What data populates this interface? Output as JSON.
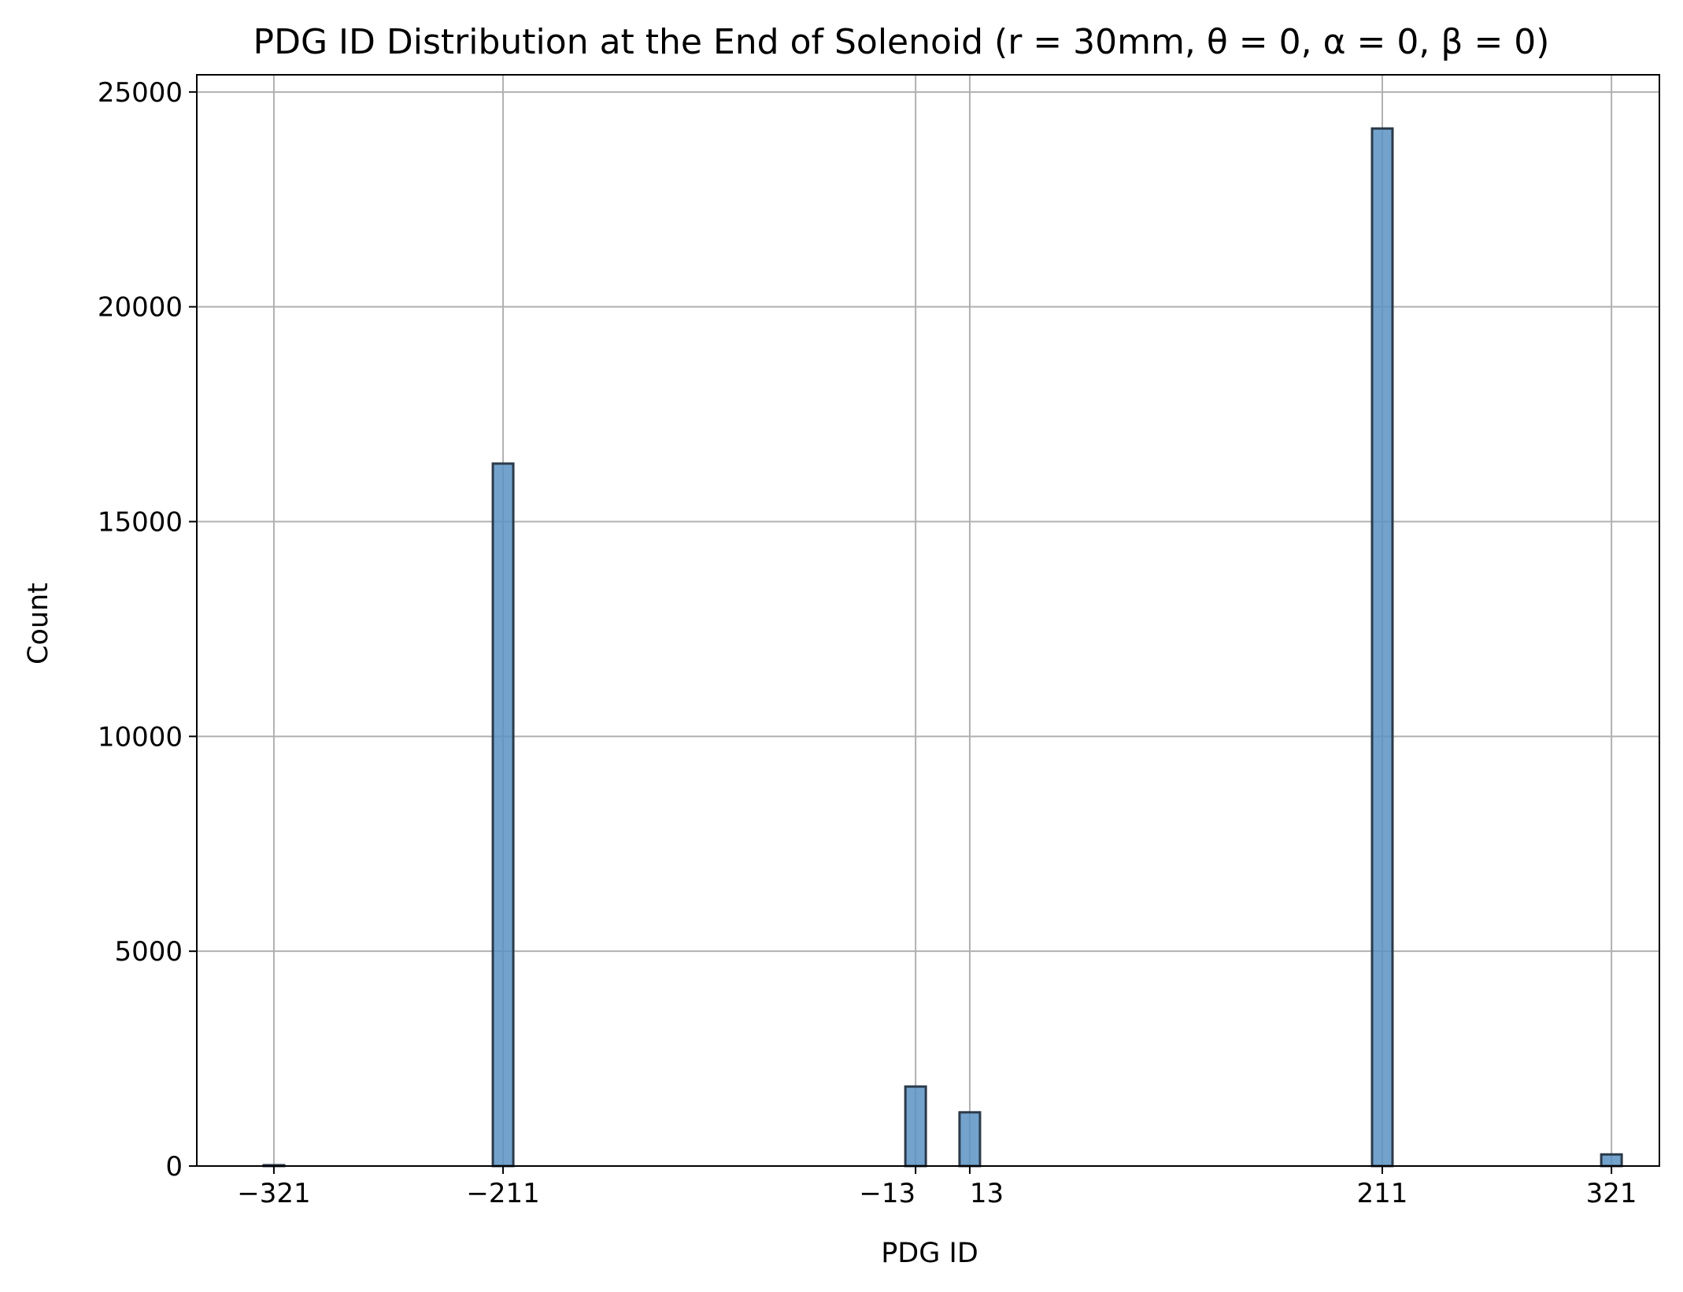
{
  "chart_data": {
    "type": "bar",
    "title": "PDG ID Distribution at the End of Solenoid (r = 30mm, θ = 0, α = 0, β = 0)",
    "xlabel": "PDG ID",
    "ylabel": "Count",
    "xticks": [
      -321,
      -211,
      -13,
      13,
      211,
      321
    ],
    "xtick_labels": [
      "−321",
      "−211",
      "−13",
      "13",
      "211",
      "321"
    ],
    "ylim": [
      0,
      25400
    ],
    "xlim": [
      -358,
      344
    ],
    "yticks": [
      0,
      5000,
      10000,
      15000,
      20000,
      25000
    ],
    "ytick_labels": [
      "0",
      "5000",
      "10000",
      "15000",
      "20000",
      "25000"
    ],
    "grid": true,
    "bar_color": "#5b93c3",
    "edge_color": "#2b3a4a",
    "bars": [
      {
        "x": -321,
        "value": 20
      },
      {
        "x": -211,
        "value": 16350
      },
      {
        "x": -13,
        "value": 1850
      },
      {
        "x": 13,
        "value": 1250
      },
      {
        "x": 211,
        "value": 24150
      },
      {
        "x": 321,
        "value": 270
      }
    ]
  }
}
